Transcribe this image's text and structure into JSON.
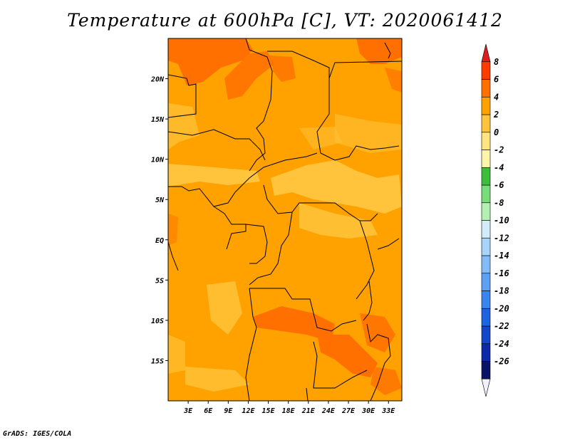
{
  "title": "Temperature at 600hPa [C], VT: 2020061412",
  "credit": "GrADS: IGES/COLA",
  "map": {
    "lon_range": [
      0,
      35
    ],
    "lat_range": [
      -20,
      25
    ],
    "lon_ticks": [
      {
        "value": 3,
        "label": "3E"
      },
      {
        "value": 6,
        "label": "6E"
      },
      {
        "value": 9,
        "label": "9E"
      },
      {
        "value": 12,
        "label": "12E"
      },
      {
        "value": 15,
        "label": "15E"
      },
      {
        "value": 18,
        "label": "18E"
      },
      {
        "value": 21,
        "label": "21E"
      },
      {
        "value": 24,
        "label": "24E"
      },
      {
        "value": 27,
        "label": "27E"
      },
      {
        "value": 30,
        "label": "30E"
      },
      {
        "value": 33,
        "label": "33E"
      }
    ],
    "lat_ticks": [
      {
        "value": 20,
        "label": "20N"
      },
      {
        "value": 15,
        "label": "15N"
      },
      {
        "value": 10,
        "label": "10N"
      },
      {
        "value": 5,
        "label": "5N"
      },
      {
        "value": 0,
        "label": "EQ"
      },
      {
        "value": -5,
        "label": "5S"
      },
      {
        "value": -10,
        "label": "10S"
      },
      {
        "value": -15,
        "label": "15S"
      }
    ]
  },
  "colorbar": {
    "labels": [
      "8",
      "6",
      "4",
      "2",
      "0",
      "-2",
      "-4",
      "-6",
      "-8",
      "-10",
      "-12",
      "-14",
      "-16",
      "-18",
      "-20",
      "-22",
      "-24",
      "-26"
    ],
    "colors": [
      "#f0f0ff",
      "#0a1466",
      "#0c2aa8",
      "#1446cc",
      "#1e64e0",
      "#3a84ee",
      "#5ea0f4",
      "#82bcf8",
      "#a8d4fa",
      "#d2ecfa",
      "#b4f0b4",
      "#78dc78",
      "#3cbe3c",
      "#fff5aa",
      "#ffe480",
      "#ffc43c",
      "#ffa200",
      "#ff7000",
      "#ff3c00",
      "#dc1e1e"
    ]
  }
}
